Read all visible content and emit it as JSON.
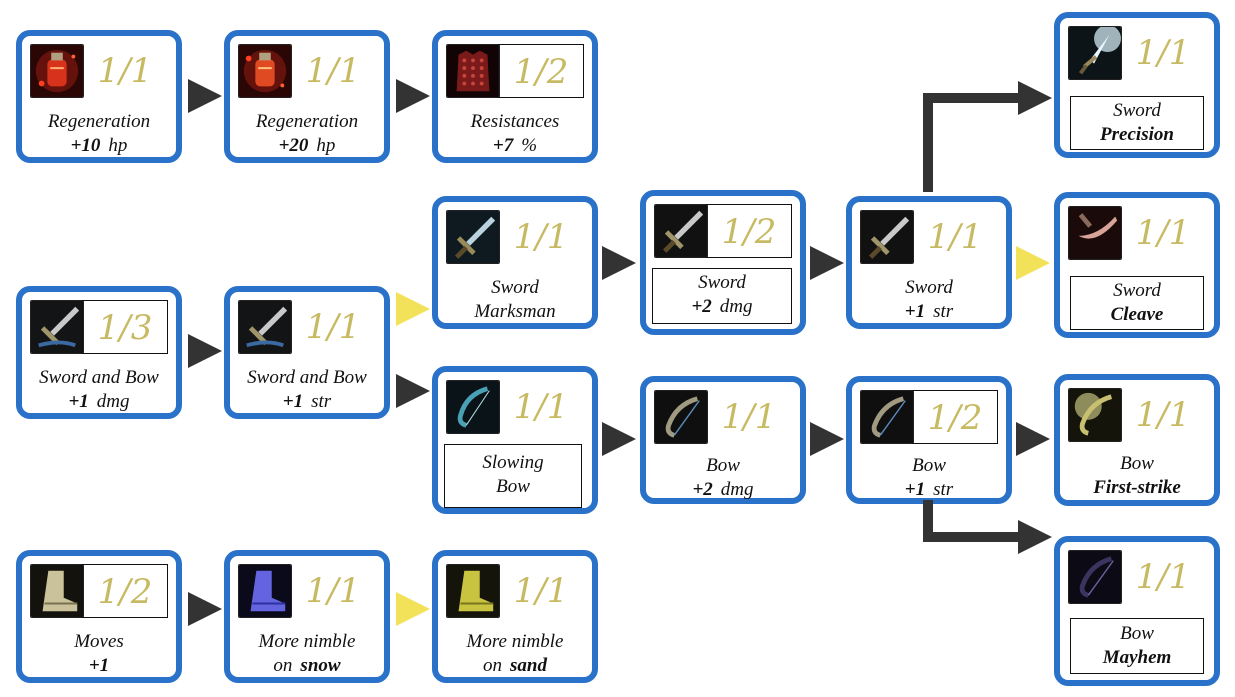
{
  "nodes": {
    "regen10": {
      "count": "1/1",
      "icon": "regeneration-potion-icon",
      "line1": "Regeneration",
      "val": "+10",
      "unit": "hp"
    },
    "regen20": {
      "count": "1/1",
      "icon": "regeneration-potion-icon",
      "line1": "Regeneration",
      "val": "+20",
      "unit": "hp"
    },
    "resist": {
      "count": "1/2",
      "icon": "armor-icon",
      "line1": "Resistances",
      "val": "+7",
      "unit": "%"
    },
    "swordbow_dmg": {
      "count": "1/3",
      "icon": "sword-and-bow-icon",
      "line1": "Sword and Bow",
      "val": "+1",
      "unit": "dmg"
    },
    "swordbow_str": {
      "count": "1/1",
      "icon": "sword-and-bow-icon",
      "line1": "Sword and Bow",
      "val": "+1",
      "unit": "str"
    },
    "sword_marks": {
      "count": "1/1",
      "icon": "sword-icon",
      "line1": "Sword",
      "line2": "Marksman"
    },
    "sword_dmg": {
      "count": "1/2",
      "icon": "sword-icon",
      "line1": "Sword",
      "val": "+2",
      "unit": "dmg"
    },
    "sword_str": {
      "count": "1/1",
      "icon": "sword-icon",
      "line1": "Sword",
      "val": "+1",
      "unit": "str"
    },
    "sword_prec": {
      "count": "1/1",
      "icon": "glowing-sword-icon",
      "line1": "Sword",
      "line2": "Precision"
    },
    "sword_cleave": {
      "count": "1/1",
      "icon": "curved-sword-icon",
      "line1": "Sword",
      "line2": "Cleave"
    },
    "slow_bow": {
      "count": "1/1",
      "icon": "bow-icon",
      "line1": "Slowing",
      "line2": "Bow"
    },
    "bow_dmg": {
      "count": "1/1",
      "icon": "bow-icon",
      "line1": "Bow",
      "val": "+2",
      "unit": "dmg"
    },
    "bow_str": {
      "count": "1/2",
      "icon": "bow-icon",
      "line1": "Bow",
      "val": "+1",
      "unit": "str"
    },
    "bow_first": {
      "count": "1/1",
      "icon": "glowing-bow-icon",
      "line1": "Bow",
      "line2": "First-strike"
    },
    "bow_mayhem": {
      "count": "1/1",
      "icon": "dark-bow-icon",
      "line1": "Bow",
      "line2": "Mayhem"
    },
    "moves": {
      "count": "1/2",
      "icon": "boot-icon",
      "line1": "Moves",
      "val": "+1"
    },
    "nimble_snow": {
      "count": "1/1",
      "icon": "blue-boot-icon",
      "line1": "More nimble",
      "pre": "on",
      "bold": "snow"
    },
    "nimble_sand": {
      "count": "1/1",
      "icon": "yellow-boot-icon",
      "line1": "More nimble",
      "pre": "on",
      "bold": "sand"
    }
  },
  "colors": {
    "node_border": "#2a72c9",
    "count_text": "#c8ba62",
    "dark_arrow": "#333333",
    "yellow_arrow": "#f2e25a"
  }
}
